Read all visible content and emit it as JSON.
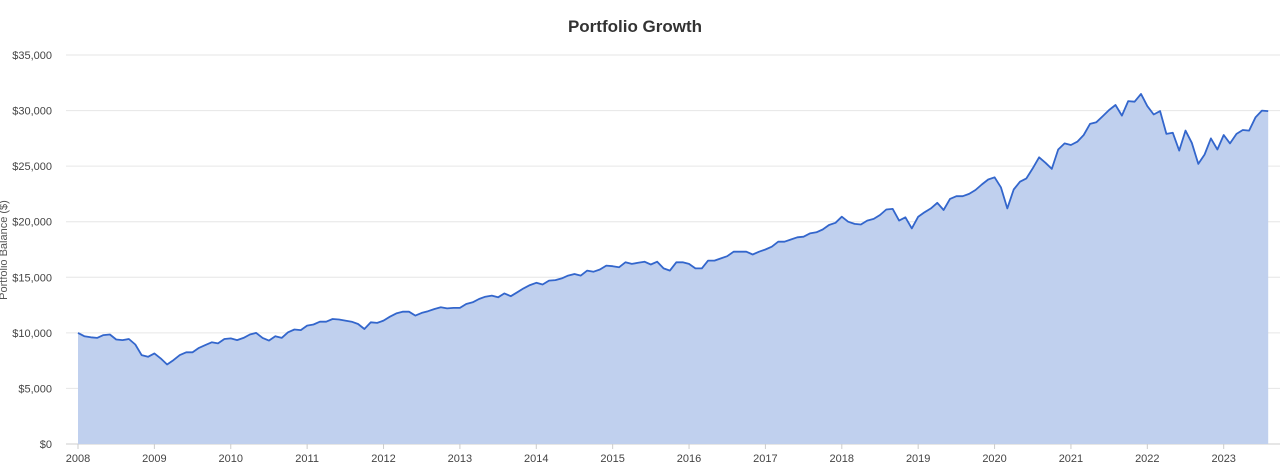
{
  "chart_data": {
    "type": "area",
    "title": "Portfolio Growth",
    "xlabel": "",
    "ylabel": "Portfolio Balance ($)",
    "xlim": [
      2008.0,
      2023.58
    ],
    "ylim": [
      0,
      35000
    ],
    "y_ticks": [
      "$0",
      "$5,000",
      "$10,000",
      "$15,000",
      "$20,000",
      "$25,000",
      "$30,000",
      "$35,000"
    ],
    "x_ticks": [
      "2008",
      "2009",
      "2010",
      "2011",
      "2012",
      "2013",
      "2014",
      "2015",
      "2016",
      "2017",
      "2018",
      "2019",
      "2020",
      "2021",
      "2022",
      "2023"
    ],
    "grid": true,
    "legend": "none",
    "colors": {
      "line": "#3366cc",
      "fill": "#c0d0ee",
      "grid": "#e6e6e6"
    },
    "series": [
      {
        "x": [
          2008.0,
          2008.083,
          2008.167,
          2008.25,
          2008.333,
          2008.417,
          2008.5,
          2008.583,
          2008.667,
          2008.75,
          2008.833,
          2008.917,
          2009.0,
          2009.083,
          2009.167,
          2009.25,
          2009.333,
          2009.417,
          2009.5,
          2009.583,
          2009.667,
          2009.75,
          2009.833,
          2009.917,
          2010.0,
          2010.083,
          2010.167,
          2010.25,
          2010.333,
          2010.417,
          2010.5,
          2010.583,
          2010.667,
          2010.75,
          2010.833,
          2010.917,
          2011.0,
          2011.083,
          2011.167,
          2011.25,
          2011.333,
          2011.417,
          2011.5,
          2011.583,
          2011.667,
          2011.75,
          2011.833,
          2011.917,
          2012.0,
          2012.083,
          2012.167,
          2012.25,
          2012.333,
          2012.417,
          2012.5,
          2012.583,
          2012.667,
          2012.75,
          2012.833,
          2012.917,
          2013.0,
          2013.083,
          2013.167,
          2013.25,
          2013.333,
          2013.417,
          2013.5,
          2013.583,
          2013.667,
          2013.75,
          2013.833,
          2013.917,
          2014.0,
          2014.083,
          2014.167,
          2014.25,
          2014.333,
          2014.417,
          2014.5,
          2014.583,
          2014.667,
          2014.75,
          2014.833,
          2014.917,
          2015.0,
          2015.083,
          2015.167,
          2015.25,
          2015.333,
          2015.417,
          2015.5,
          2015.583,
          2015.667,
          2015.75,
          2015.833,
          2015.917,
          2016.0,
          2016.083,
          2016.167,
          2016.25,
          2016.333,
          2016.417,
          2016.5,
          2016.583,
          2016.667,
          2016.75,
          2016.833,
          2016.917,
          2017.0,
          2017.083,
          2017.167,
          2017.25,
          2017.333,
          2017.417,
          2017.5,
          2017.583,
          2017.667,
          2017.75,
          2017.833,
          2017.917,
          2018.0,
          2018.083,
          2018.167,
          2018.25,
          2018.333,
          2018.417,
          2018.5,
          2018.583,
          2018.667,
          2018.75,
          2018.833,
          2018.917,
          2019.0,
          2019.083,
          2019.167,
          2019.25,
          2019.333,
          2019.417,
          2019.5,
          2019.583,
          2019.667,
          2019.75,
          2019.833,
          2019.917,
          2020.0,
          2020.083,
          2020.167,
          2020.25,
          2020.333,
          2020.417,
          2020.5,
          2020.583,
          2020.667,
          2020.75,
          2020.833,
          2020.917,
          2021.0,
          2021.083,
          2021.167,
          2021.25,
          2021.333,
          2021.417,
          2021.5,
          2021.583,
          2021.667,
          2021.75,
          2021.833,
          2021.917,
          2022.0,
          2022.083,
          2022.167,
          2022.25,
          2022.333,
          2022.417,
          2022.5,
          2022.583,
          2022.667,
          2022.75,
          2022.833,
          2022.917,
          2023.0,
          2023.083,
          2023.167,
          2023.25,
          2023.333,
          2023.417,
          2023.5,
          2023.583
        ],
        "values": [
          10000,
          9700,
          9600,
          9550,
          9800,
          9850,
          9400,
          9350,
          9450,
          8950,
          8000,
          7850,
          8150,
          7700,
          7150,
          7550,
          8000,
          8250,
          8250,
          8650,
          8900,
          9150,
          9050,
          9450,
          9500,
          9350,
          9550,
          9850,
          10000,
          9550,
          9300,
          9700,
          9550,
          10050,
          10300,
          10250,
          10650,
          10750,
          11000,
          11000,
          11250,
          11200,
          11100,
          11000,
          10800,
          10350,
          10950,
          10900,
          11100,
          11450,
          11750,
          11900,
          11900,
          11550,
          11800,
          11950,
          12150,
          12300,
          12200,
          12250,
          12250,
          12600,
          12750,
          13050,
          13250,
          13350,
          13200,
          13550,
          13300,
          13650,
          14000,
          14300,
          14500,
          14350,
          14700,
          14750,
          14900,
          15150,
          15300,
          15150,
          15600,
          15500,
          15700,
          16050,
          16000,
          15900,
          16350,
          16200,
          16300,
          16400,
          16150,
          16400,
          15800,
          15600,
          16350,
          16350,
          16200,
          15800,
          15800,
          16500,
          16500,
          16700,
          16900,
          17300,
          17300,
          17300,
          17050,
          17300,
          17500,
          17750,
          18200,
          18200,
          18400,
          18600,
          18650,
          18950,
          19050,
          19300,
          19700,
          19900,
          20450,
          20000,
          19800,
          19750,
          20100,
          20250,
          20600,
          21100,
          21150,
          20100,
          20400,
          19400,
          20450,
          20850,
          21200,
          21700,
          21050,
          22050,
          22300,
          22300,
          22500,
          22850,
          23350,
          23800,
          24000,
          23100,
          21200,
          22900,
          23600,
          23900,
          24800,
          25800,
          25300,
          24750,
          26500,
          27050,
          26900,
          27200,
          27800,
          28800,
          28950,
          29500,
          30050,
          30500,
          29550,
          30850,
          30800,
          31500,
          30400,
          29650,
          29950,
          27900,
          28000,
          26400,
          28200,
          27100,
          25200,
          26050,
          27500,
          26500,
          27800,
          27050,
          27900,
          28250,
          28200,
          29400,
          30000,
          29950
        ]
      }
    ]
  }
}
